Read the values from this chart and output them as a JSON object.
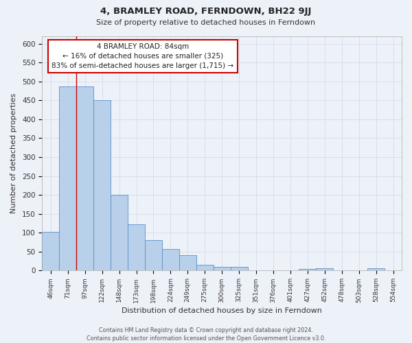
{
  "title": "4, BRAMLEY ROAD, FERNDOWN, BH22 9JJ",
  "subtitle": "Size of property relative to detached houses in Ferndown",
  "xlabel": "Distribution of detached houses by size in Ferndown",
  "ylabel": "Number of detached properties",
  "footer_line1": "Contains HM Land Registry data © Crown copyright and database right 2024.",
  "footer_line2": "Contains public sector information licensed under the Open Government Licence v3.0.",
  "bins": [
    "46sqm",
    "71sqm",
    "97sqm",
    "122sqm",
    "148sqm",
    "173sqm",
    "198sqm",
    "224sqm",
    "249sqm",
    "275sqm",
    "300sqm",
    "325sqm",
    "351sqm",
    "376sqm",
    "401sqm",
    "427sqm",
    "452sqm",
    "478sqm",
    "503sqm",
    "528sqm",
    "554sqm"
  ],
  "values": [
    103,
    487,
    487,
    450,
    200,
    122,
    80,
    57,
    40,
    16,
    10,
    10,
    1,
    0,
    0,
    5,
    6,
    0,
    0,
    7,
    0
  ],
  "bar_color": "#b8d0ea",
  "bar_edge_color": "#5b8fc9",
  "grid_color": "#d0d8e8",
  "background_color": "#edf1f8",
  "red_line_x": 1.5,
  "annotation_title": "4 BRAMLEY ROAD: 84sqm",
  "annotation_line2": "← 16% of detached houses are smaller (325)",
  "annotation_line3": "83% of semi-detached houses are larger (1,715) →",
  "annotation_box_color": "#ffffff",
  "annotation_box_edge": "#cc0000",
  "ylim": [
    0,
    620
  ],
  "yticks": [
    0,
    50,
    100,
    150,
    200,
    250,
    300,
    350,
    400,
    450,
    500,
    550,
    600
  ]
}
